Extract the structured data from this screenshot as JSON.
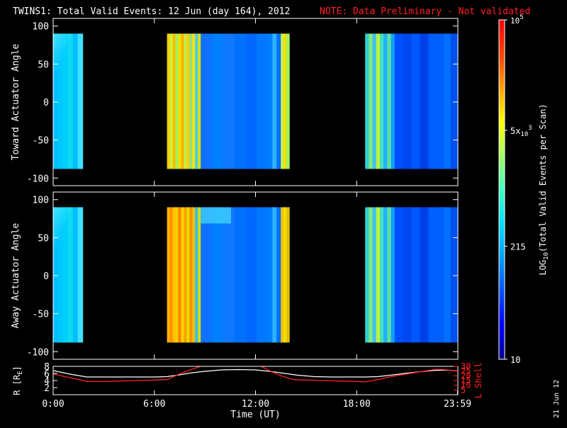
{
  "header": {
    "title": "TWINS1: Total Valid Events: 12 Jun (day 164), 2012",
    "note": "NOTE: Data Preliminary - Not validated"
  },
  "datestamp": "21 Jun 12",
  "colors": {
    "background": "#000000",
    "axes": "#ffffff",
    "note": "#ff2020",
    "r_line": "#ffffff",
    "lshell_line": "#ff2020"
  },
  "colorbar": {
    "label": "LOG10(Total Valid Events per Scan)",
    "scale": "log",
    "range": [
      10,
      100000
    ],
    "ticks": [
      {
        "value": 10,
        "text": "10"
      },
      {
        "value": 215,
        "text": "215"
      },
      {
        "value": 5000,
        "text": "5x10^3"
      },
      {
        "value": 100000,
        "text": "10^5"
      }
    ],
    "colormap": [
      "#000090",
      "#0000ff",
      "#0050ff",
      "#00a0ff",
      "#00e0ff",
      "#40ffc0",
      "#a0ff60",
      "#ffff00",
      "#ffa000",
      "#ff4000",
      "#ff0000"
    ]
  },
  "chart_data": [
    {
      "type": "heatmap",
      "ylabel": "Toward Actuator Angle",
      "xlim": [
        0,
        24
      ],
      "ylim": [
        -110,
        110
      ],
      "yticks": [
        100,
        50,
        0,
        -50,
        -100
      ],
      "data_ylim": [
        -88,
        90
      ],
      "no_data_color": "#000000",
      "segments": [
        {
          "x": [
            0.0,
            1.75
          ],
          "colors": [
            "#00c0ff",
            "#00c8ff",
            "#00d0ff",
            "#10d8f0",
            "#00c0ff",
            "#40e0ff"
          ],
          "fade_top": true,
          "value": 600
        },
        {
          "x": [
            6.75,
            8.75
          ],
          "colors": [
            "#f0d000",
            "#d0f040",
            "#ffc000",
            "#a0f060",
            "#f8e000",
            "#ffb000",
            "#c0f050",
            "#ffd000",
            "#90e080",
            "#ffe000",
            "#40d0ff",
            "#e0e000"
          ],
          "value": 20000
        },
        {
          "x": [
            8.75,
            12.75
          ],
          "colors": [
            "#1070ff",
            "#0080ff",
            "#1078ff",
            "#0070ff",
            "#0068ff",
            "#0078ff"
          ],
          "value": 300
        },
        {
          "x": [
            12.75,
            13.5
          ],
          "colors": [
            "#0080ff",
            "#30b0ff",
            "#0070ff"
          ],
          "value": 400
        },
        {
          "x": [
            13.5,
            14.0
          ],
          "colors": [
            "#d0f040",
            "#f0e000",
            "#a0f060"
          ],
          "value": 8000
        },
        {
          "x": [
            18.5,
            20.25
          ],
          "colors": [
            "#30d0d0",
            "#80e880",
            "#40c0f0",
            "#c0f040",
            "#40e0c0",
            "#20b0ff",
            "#60e0a0",
            "#10a0ff"
          ],
          "value": 2000
        },
        {
          "x": [
            20.25,
            22.75
          ],
          "colors": [
            "#0050ff",
            "#0048f0",
            "#0058ff",
            "#0040e8",
            "#0060ff"
          ],
          "value": 100
        },
        {
          "x": [
            22.75,
            23.98
          ],
          "colors": [
            "#0060ff",
            "#0070ff",
            "#0050f0"
          ],
          "value": 150
        }
      ]
    },
    {
      "type": "heatmap",
      "ylabel": "Away Actuator Angle",
      "xlim": [
        0,
        24
      ],
      "ylim": [
        -110,
        110
      ],
      "yticks": [
        100,
        50,
        0,
        -50,
        -100
      ],
      "data_ylim": [
        -88,
        90
      ],
      "no_data_color": "#000000",
      "segments": [
        {
          "x": [
            0.0,
            1.75
          ],
          "colors": [
            "#00c0ff",
            "#00c8ff",
            "#00d0ff",
            "#10d8f0",
            "#00c0ff",
            "#40e0ff"
          ],
          "fade_top": true,
          "value": 600
        },
        {
          "x": [
            6.75,
            8.75
          ],
          "colors": [
            "#ffb000",
            "#ff9000",
            "#ffc000",
            "#f0d000",
            "#ff8000",
            "#ffd000",
            "#ffa000",
            "#e0e000",
            "#ff9000",
            "#f0c000",
            "#30c0ff",
            "#d0e000"
          ],
          "value": 30000
        },
        {
          "x": [
            8.75,
            12.75
          ],
          "colors": [
            "#1070ff",
            "#0080ff",
            "#1078ff",
            "#0070ff",
            "#0068ff",
            "#0078ff"
          ],
          "top_band": "#40d0ff",
          "value": 300
        },
        {
          "x": [
            12.75,
            13.5
          ],
          "colors": [
            "#0080ff",
            "#30b0ff",
            "#0070ff"
          ],
          "value": 400
        },
        {
          "x": [
            13.5,
            14.0
          ],
          "colors": [
            "#ffc000",
            "#f0e000",
            "#e0c000"
          ],
          "value": 15000
        },
        {
          "x": [
            18.5,
            20.25
          ],
          "colors": [
            "#30d0d0",
            "#80e880",
            "#40c0f0",
            "#c0f040",
            "#40e0c0",
            "#20b0ff",
            "#60e0a0",
            "#10a0ff"
          ],
          "value": 2000
        },
        {
          "x": [
            20.25,
            22.75
          ],
          "colors": [
            "#0050ff",
            "#0048f0",
            "#0058ff",
            "#0040e8",
            "#0060ff"
          ],
          "value": 100
        },
        {
          "x": [
            22.75,
            23.98
          ],
          "colors": [
            "#0060ff",
            "#0070ff",
            "#0050f0"
          ],
          "value": 150
        }
      ]
    },
    {
      "type": "line",
      "xlabel": "Time (UT)",
      "xlim": [
        0,
        24
      ],
      "xticks": [
        {
          "v": 0,
          "t": "0:00"
        },
        {
          "v": 6,
          "t": "6:00"
        },
        {
          "v": 12,
          "t": "12:00"
        },
        {
          "v": 18,
          "t": "18:00"
        },
        {
          "v": 23.98,
          "t": "23:59"
        }
      ],
      "ylabel_left": "R [RE]",
      "ylim_left": [
        0,
        8
      ],
      "yticks_left": [
        2,
        4,
        6,
        8
      ],
      "ylabel_right": "L Shell",
      "ylim_right": [
        0,
        30
      ],
      "yticks_right": [
        5,
        10,
        15,
        20,
        25,
        30
      ],
      "series": [
        {
          "axis": "left",
          "color": "#ffffff",
          "x": [
            0,
            0.5,
            1,
            2,
            3,
            4,
            5,
            6,
            6.75,
            7.5,
            8.25,
            9,
            10,
            11,
            12,
            13,
            13.75,
            14.5,
            15.5,
            16.5,
            17.5,
            18.5,
            19.25,
            20,
            21,
            22,
            22.75,
            23.5,
            23.98
          ],
          "y": [
            6.8,
            6.3,
            5.8,
            5.0,
            5.0,
            5.0,
            5.0,
            5.0,
            5.1,
            5.6,
            6.2,
            6.6,
            7.0,
            7.1,
            7.0,
            6.5,
            6.0,
            5.5,
            5.1,
            5.0,
            5.0,
            5.0,
            5.1,
            5.5,
            6.1,
            6.6,
            6.9,
            6.9,
            6.7
          ]
        },
        {
          "axis": "right",
          "color": "#ff2020",
          "x": [
            0,
            1,
            2,
            3,
            4,
            5,
            6,
            6.75,
            7.5,
            8.25,
            8.9,
            12.25,
            12.75,
            13.5,
            14.25,
            15,
            16,
            17,
            18,
            18.5,
            19.25,
            20,
            21,
            22,
            22.75,
            23.5,
            23.98
          ],
          "y": [
            22,
            18,
            14,
            14,
            14.5,
            15,
            15.5,
            16,
            22,
            27,
            31,
            31,
            26,
            20,
            16,
            15.5,
            15,
            14.5,
            14,
            13.5,
            16,
            19,
            22,
            25,
            27,
            26,
            25
          ]
        }
      ]
    }
  ]
}
